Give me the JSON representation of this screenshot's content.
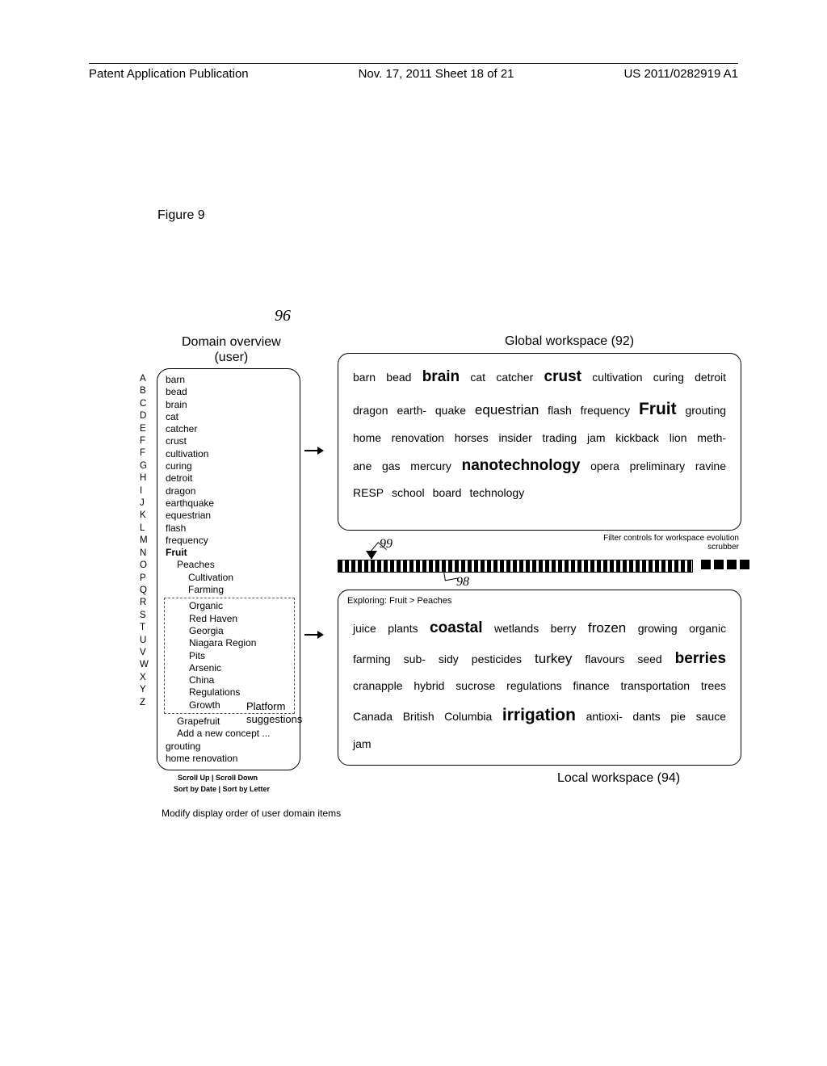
{
  "header": {
    "left": "Patent Application Publication",
    "center": "Nov. 17, 2011  Sheet 18 of 21",
    "right": "US 2011/0282919 A1"
  },
  "figure_label": "Figure 9",
  "refs": {
    "r96": "96",
    "r99": "99",
    "r98": "98"
  },
  "domain": {
    "title_l1": "Domain overview",
    "title_l2": "(user)",
    "alpha": "A\nB\nC\nD\nE\nF\nF\nG\nH\nI\nJ\nK\nL\nM\nN\nO\nP\nQ\nR\nS\nT\nU\nV\nW\nX\nY\nZ",
    "items": [
      {
        "t": "barn",
        "cls": ""
      },
      {
        "t": "bead",
        "cls": ""
      },
      {
        "t": "brain",
        "cls": ""
      },
      {
        "t": "cat",
        "cls": ""
      },
      {
        "t": "catcher",
        "cls": ""
      },
      {
        "t": "crust",
        "cls": ""
      },
      {
        "t": "cultivation",
        "cls": ""
      },
      {
        "t": "curing",
        "cls": ""
      },
      {
        "t": "detroit",
        "cls": ""
      },
      {
        "t": "dragon",
        "cls": ""
      },
      {
        "t": "earthquake",
        "cls": ""
      },
      {
        "t": "equestrian",
        "cls": ""
      },
      {
        "t": "flash",
        "cls": ""
      },
      {
        "t": "frequency",
        "cls": ""
      },
      {
        "t": "Fruit",
        "cls": "bold"
      },
      {
        "t": "Peaches",
        "cls": "i1"
      },
      {
        "t": "Cultivation",
        "cls": "i2"
      },
      {
        "t": "Farming",
        "cls": "i2"
      }
    ],
    "suggestions": [
      {
        "t": "Organic",
        "cls": "i2"
      },
      {
        "t": "Red Haven",
        "cls": "i2"
      },
      {
        "t": "Georgia",
        "cls": "i2"
      },
      {
        "t": "Niagara Region",
        "cls": "i2"
      },
      {
        "t": "Pits",
        "cls": "i2"
      },
      {
        "t": "Arsenic",
        "cls": "i2"
      },
      {
        "t": "China",
        "cls": "i2"
      },
      {
        "t": "Regulations",
        "cls": "i2"
      },
      {
        "t": "Growth",
        "cls": "i2"
      }
    ],
    "items_after": [
      {
        "t": "Grapefruit",
        "cls": "i1"
      },
      {
        "t": "Add a new concept ...",
        "cls": "i1"
      },
      {
        "t": "grouting",
        "cls": ""
      },
      {
        "t": "home renovation",
        "cls": ""
      }
    ],
    "platform_l1": "Platform",
    "platform_l2": "suggestions",
    "scroll": "Scroll Up  |  Scroll Down",
    "sort": "Sort by Date  |  Sort by Letter",
    "modify": "Modify display order of user domain items"
  },
  "global": {
    "title": "Global workspace (92)",
    "words": [
      {
        "t": "barn",
        "w": "w1"
      },
      {
        "t": "bead",
        "w": "w1"
      },
      {
        "t": "brain",
        "w": "w3"
      },
      {
        "t": "cat",
        "w": "w1"
      },
      {
        "t": "catcher",
        "w": "w1"
      },
      {
        "t": "crust",
        "w": "w3"
      },
      {
        "t": "cultivation",
        "w": "w1"
      },
      {
        "t": "curing",
        "w": "w1"
      },
      {
        "t": "detroit",
        "w": "w1"
      },
      {
        "t": "dragon",
        "w": "w1"
      },
      {
        "t": "earth-",
        "w": "w1"
      },
      {
        "t": "quake",
        "w": "w1"
      },
      {
        "t": "equestrian",
        "w": "w2"
      },
      {
        "t": "flash",
        "w": "w1"
      },
      {
        "t": "frequency",
        "w": "w1"
      },
      {
        "t": "Fruit",
        "w": "w4"
      },
      {
        "t": "grouting",
        "w": "w1"
      },
      {
        "t": "home renovation",
        "w": "w1"
      },
      {
        "t": "horses",
        "w": "w1"
      },
      {
        "t": "insider trading",
        "w": "w1"
      },
      {
        "t": "jam",
        "w": "w1"
      },
      {
        "t": "kickback",
        "w": "w1"
      },
      {
        "t": "lion",
        "w": "w1"
      },
      {
        "t": "meth-",
        "w": "w1"
      },
      {
        "t": "ane gas",
        "w": "w1"
      },
      {
        "t": "mercury",
        "w": "w1"
      },
      {
        "t": "nanotechnology",
        "w": "w3"
      },
      {
        "t": "opera",
        "w": "w1"
      },
      {
        "t": "preliminary",
        "w": "w1"
      },
      {
        "t": "ravine",
        "w": "w1"
      },
      {
        "t": "RESP",
        "w": "w1"
      },
      {
        "t": "school",
        "w": "w1"
      },
      {
        "t": "board",
        "w": "w1"
      },
      {
        "t": "technology",
        "w": "w1"
      }
    ]
  },
  "filter_label": "Filter controls for workspace evolution scrubber",
  "local": {
    "title": "Local workspace (94)",
    "exploring": "Exploring: Fruit > Peaches",
    "words": [
      {
        "t": "juice",
        "w": "w1"
      },
      {
        "t": "plants",
        "w": "w1"
      },
      {
        "t": "coastal",
        "w": "w3"
      },
      {
        "t": "wetlands",
        "w": "w1"
      },
      {
        "t": "berry",
        "w": "w1"
      },
      {
        "t": "frozen",
        "w": "w2"
      },
      {
        "t": "growing",
        "w": "w1"
      },
      {
        "t": "organic",
        "w": "w1"
      },
      {
        "t": "farming",
        "w": "w1"
      },
      {
        "t": "sub-",
        "w": "w1"
      },
      {
        "t": "sidy",
        "w": "w1"
      },
      {
        "t": "pesticides",
        "w": "w1"
      },
      {
        "t": "turkey",
        "w": "w2"
      },
      {
        "t": "flavours",
        "w": "w1"
      },
      {
        "t": "seed",
        "w": "w1"
      },
      {
        "t": "berries",
        "w": "w3"
      },
      {
        "t": "cranapple",
        "w": "w1"
      },
      {
        "t": "hybrid",
        "w": "w1"
      },
      {
        "t": "sucrose",
        "w": "w1"
      },
      {
        "t": "regulations",
        "w": "w1"
      },
      {
        "t": "finance",
        "w": "w1"
      },
      {
        "t": "transportation",
        "w": "w1"
      },
      {
        "t": "trees",
        "w": "w1"
      },
      {
        "t": "Canada",
        "w": "w1"
      },
      {
        "t": "British Columbia",
        "w": "w1"
      },
      {
        "t": "irrigation",
        "w": "w4"
      },
      {
        "t": "antioxi-",
        "w": "w1"
      },
      {
        "t": "dants",
        "w": "w1"
      },
      {
        "t": "pie",
        "w": "w1"
      },
      {
        "t": "sauce",
        "w": "w1"
      },
      {
        "t": "jam",
        "w": "w1"
      }
    ]
  }
}
